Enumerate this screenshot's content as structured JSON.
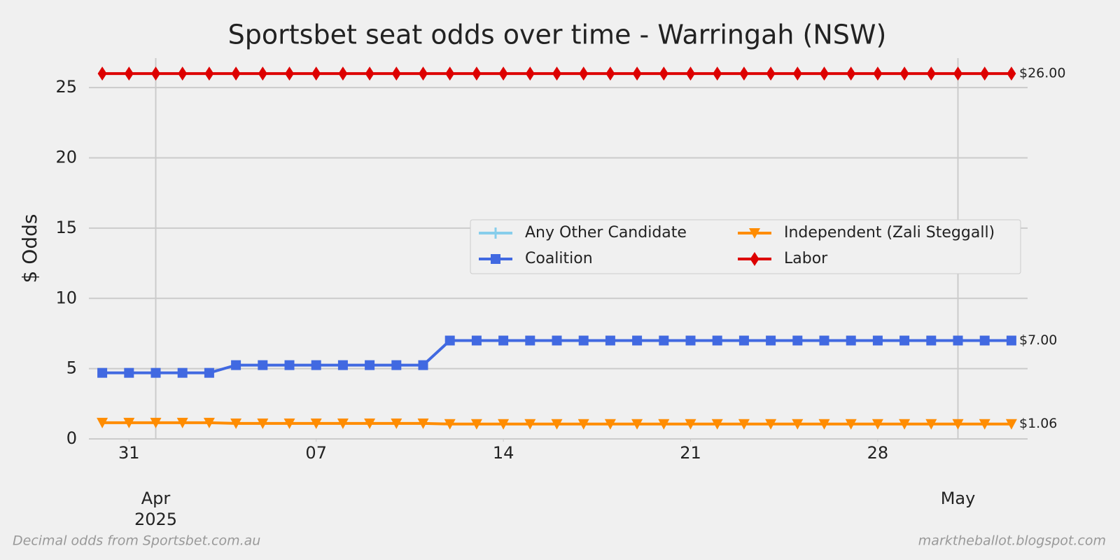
{
  "chart_data": {
    "type": "line",
    "title": "Sportsbet seat odds over time - Warringah (NSW)",
    "y_label": "$ Odds",
    "footer_left": "Decimal odds from Sportsbet.com.au",
    "footer_right": "marktheballot.blogspot.com",
    "x": [
      "2025-03-30",
      "2025-03-31",
      "2025-04-01",
      "2025-04-02",
      "2025-04-03",
      "2025-04-04",
      "2025-04-05",
      "2025-04-06",
      "2025-04-07",
      "2025-04-08",
      "2025-04-09",
      "2025-04-10",
      "2025-04-11",
      "2025-04-12",
      "2025-04-13",
      "2025-04-14",
      "2025-04-15",
      "2025-04-16",
      "2025-04-17",
      "2025-04-18",
      "2025-04-19",
      "2025-04-20",
      "2025-04-21",
      "2025-04-22",
      "2025-04-23",
      "2025-04-24",
      "2025-04-25",
      "2025-04-26",
      "2025-04-27",
      "2025-04-28",
      "2025-04-29",
      "2025-04-30",
      "2025-05-01",
      "2025-05-02",
      "2025-05-03"
    ],
    "series": [
      {
        "name": "Any Other Candidate",
        "color": "#87ceeb",
        "marker": "plus",
        "values": [
          null,
          null,
          null,
          null,
          null,
          null,
          null,
          null,
          null,
          null,
          null,
          null,
          null,
          null,
          null,
          null,
          null,
          null,
          null,
          null,
          null,
          null,
          null,
          null,
          null,
          null,
          null,
          null,
          null,
          null,
          null,
          null,
          null,
          null,
          null
        ]
      },
      {
        "name": "Coalition",
        "color": "#4169e1",
        "marker": "square",
        "end_label": "$7.00",
        "values": [
          4.7,
          4.7,
          4.7,
          4.7,
          4.7,
          5.25,
          5.25,
          5.25,
          5.25,
          5.25,
          5.25,
          5.25,
          5.25,
          7,
          7,
          7,
          7,
          7,
          7,
          7,
          7,
          7,
          7,
          7,
          7,
          7,
          7,
          7,
          7,
          7,
          7,
          7,
          7,
          7,
          7
        ]
      },
      {
        "name": "Independent (Zali Steggall)",
        "color": "#ff8c00",
        "marker": "triangle-down",
        "end_label": "$1.06",
        "values": [
          1.15,
          1.15,
          1.15,
          1.15,
          1.15,
          1.1,
          1.1,
          1.1,
          1.1,
          1.1,
          1.1,
          1.1,
          1.1,
          1.06,
          1.06,
          1.06,
          1.06,
          1.06,
          1.06,
          1.06,
          1.06,
          1.06,
          1.06,
          1.06,
          1.06,
          1.06,
          1.06,
          1.06,
          1.06,
          1.06,
          1.06,
          1.06,
          1.06,
          1.06,
          1.06
        ]
      },
      {
        "name": "Labor",
        "color": "#dd0000",
        "marker": "diamond",
        "end_label": "$26.00",
        "values": [
          26,
          26,
          26,
          26,
          26,
          26,
          26,
          26,
          26,
          26,
          26,
          26,
          26,
          26,
          26,
          26,
          26,
          26,
          26,
          26,
          26,
          26,
          26,
          26,
          26,
          26,
          26,
          26,
          26,
          26,
          26,
          26,
          26,
          26,
          26
        ]
      }
    ],
    "xlim": [
      "2025-03-29T12:00Z",
      "2025-05-03T12:00Z"
    ],
    "xticks": [
      {
        "value": "2025-03-31",
        "label": "31"
      },
      {
        "value": "2025-04-07",
        "label": "07"
      },
      {
        "value": "2025-04-14",
        "label": "14"
      },
      {
        "value": "2025-04-21",
        "label": "21"
      },
      {
        "value": "2025-04-28",
        "label": "28"
      }
    ],
    "xticks_major": [
      {
        "value": "2025-04-01",
        "label": "Apr\n2025"
      },
      {
        "value": "2025-05-01",
        "label": "May"
      }
    ],
    "ylim": [
      0,
      27.1
    ],
    "yticks": [
      0,
      5,
      10,
      15,
      20,
      25
    ],
    "grid": true,
    "legend": "center right"
  }
}
